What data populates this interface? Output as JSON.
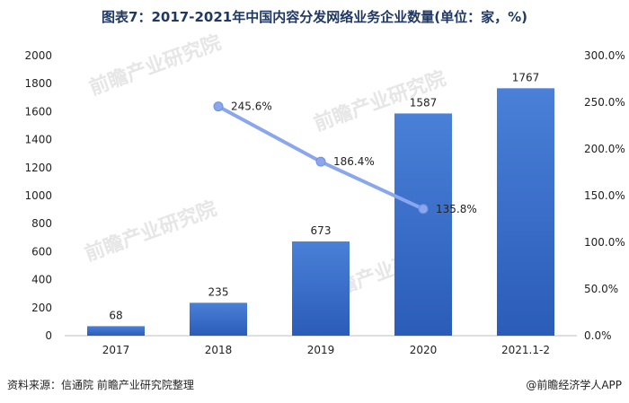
{
  "title": "图表7：2017-2021年中国内容分发网络业务企业数量(单位：家，%)",
  "footer": {
    "source": "资料来源：信通院 前瞻产业研究院整理",
    "brand": "@前瞻经济学人APP"
  },
  "watermark": "前瞻产业研究院",
  "chart_data": {
    "type": "bar",
    "categories": [
      "2017",
      "2018",
      "2019",
      "2020",
      "2021.1-2"
    ],
    "series": [
      {
        "values": [
          68,
          235,
          673,
          1587,
          1767
        ],
        "color": "#3a6fc8"
      },
      {
        "type": "line",
        "values": [
          null,
          245.6,
          186.4,
          135.8,
          null
        ],
        "labels": [
          "",
          "245.6%",
          "186.4%",
          "135.8%",
          ""
        ],
        "color": "#8aa7ee"
      }
    ],
    "y_left": {
      "ylim": [
        0,
        2000
      ],
      "ticks": [
        0,
        200,
        400,
        600,
        800,
        1000,
        1200,
        1400,
        1600,
        1800,
        2000
      ]
    },
    "y_right": {
      "ylim": [
        0,
        300
      ],
      "ticks": [
        "0.0%",
        "50.0%",
        "100.0%",
        "150.0%",
        "200.0%",
        "250.0%",
        "300.0%"
      ]
    },
    "grid": false,
    "legend": "none"
  }
}
